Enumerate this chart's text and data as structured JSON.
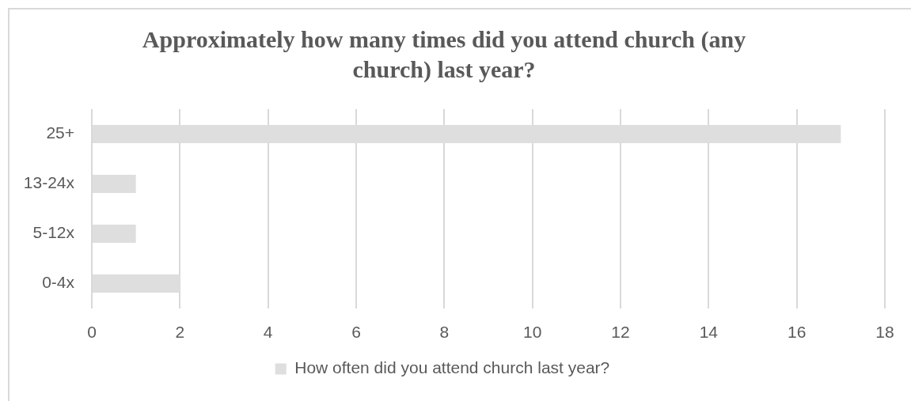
{
  "chart_data": {
    "type": "bar",
    "orientation": "horizontal",
    "title": "Approximately how many times did you attend church (any church) last year?",
    "categories": [
      "25+",
      "13-24x",
      "5-12x",
      "0-4x"
    ],
    "series": [
      {
        "name": "How often did you attend church last year?",
        "color": "#dedede",
        "values": [
          17,
          1,
          1,
          2
        ]
      }
    ],
    "xlim": [
      0,
      18
    ],
    "xticks": [
      0,
      2,
      4,
      6,
      8,
      10,
      12,
      14,
      16,
      18
    ],
    "grid": "x",
    "legend": "bottom"
  }
}
